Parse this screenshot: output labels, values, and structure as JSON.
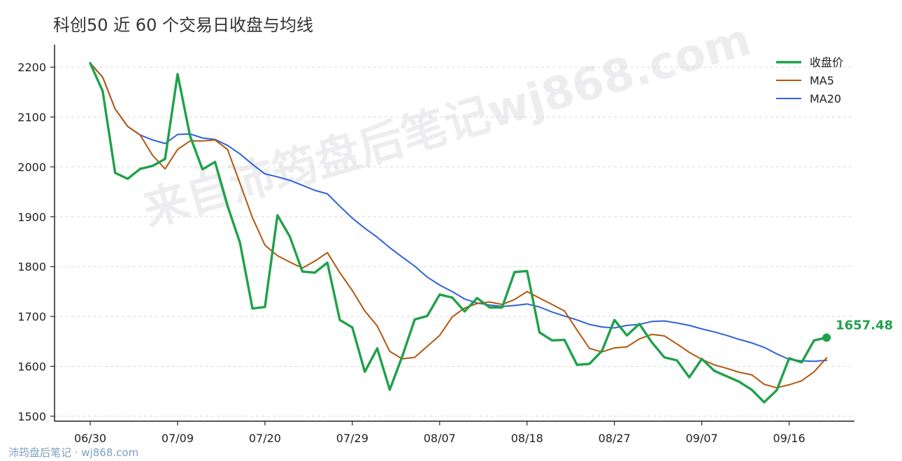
{
  "chart_data": {
    "type": "line",
    "title": "科创50 近 60 个交易日收盘与均线",
    "xlabel": "",
    "ylabel": "",
    "ylim": [
      1490,
      2245
    ],
    "yticks": [
      1500,
      1600,
      1700,
      1800,
      1900,
      2000,
      2100,
      2200
    ],
    "x_tick_labels": [
      "06/30",
      "07/09",
      "07/20",
      "07/29",
      "08/07",
      "08/18",
      "08/27",
      "09/07",
      "09/16"
    ],
    "x_tick_indices": [
      0,
      7,
      14,
      21,
      28,
      35,
      42,
      49,
      56
    ],
    "grid": true,
    "legend_position": "top-right",
    "last_value_label": "1657.48",
    "series": [
      {
        "name": "收盘价",
        "color": "#1fa14a",
        "values": [
          2208,
          2152,
          1988,
          1976,
          1996,
          2002,
          2016,
          2186,
          2062,
          1995,
          2010,
          1922,
          1848,
          1716,
          1719,
          1903,
          1860,
          1790,
          1788,
          1808,
          1693,
          1678,
          1589,
          1636,
          1553,
          1620,
          1694,
          1701,
          1744,
          1738,
          1710,
          1737,
          1718,
          1718,
          1789,
          1791,
          1668,
          1652,
          1653,
          1603,
          1605,
          1631,
          1693,
          1662,
          1685,
          1648,
          1618,
          1612,
          1578,
          1615,
          1591,
          1580,
          1569,
          1553,
          1528,
          1552,
          1616,
          1608,
          1652,
          1657.48
        ]
      },
      {
        "name": "MA5",
        "color": "#b4570f",
        "values": [
          2208,
          2180,
          2116,
          2081,
          2064,
          2023,
          1996,
          2035,
          2052,
          2052,
          2054,
          2035,
          1967,
          1898,
          1843,
          1822,
          1809,
          1797,
          1811,
          1828,
          1788,
          1752,
          1711,
          1681,
          1630,
          1615,
          1618,
          1640,
          1662,
          1699,
          1717,
          1726,
          1729,
          1724,
          1734,
          1750,
          1737,
          1724,
          1711,
          1673,
          1636,
          1629,
          1637,
          1639,
          1655,
          1664,
          1661,
          1645,
          1628,
          1614,
          1603,
          1596,
          1588,
          1583,
          1564,
          1557,
          1563,
          1571,
          1589,
          1617
        ]
      },
      {
        "name": "MA20",
        "color": "#2f63d8",
        "values": [
          2208,
          2180,
          2116,
          2081,
          2064,
          2054,
          2047,
          2065,
          2066,
          2058,
          2055,
          2043,
          2026,
          2005,
          1986,
          1980,
          1973,
          1963,
          1953,
          1946,
          1921,
          1897,
          1877,
          1859,
          1838,
          1819,
          1801,
          1779,
          1763,
          1750,
          1735,
          1727,
          1723,
          1720,
          1722,
          1725,
          1719,
          1709,
          1701,
          1693,
          1684,
          1679,
          1677,
          1682,
          1684,
          1690,
          1691,
          1687,
          1682,
          1675,
          1669,
          1662,
          1654,
          1647,
          1638,
          1625,
          1614,
          1611,
          1610,
          1612
        ]
      }
    ]
  },
  "watermark": "来自沛筠盘后笔记wj868.com",
  "footer": "沛筠盘后笔记 · wj868.com"
}
